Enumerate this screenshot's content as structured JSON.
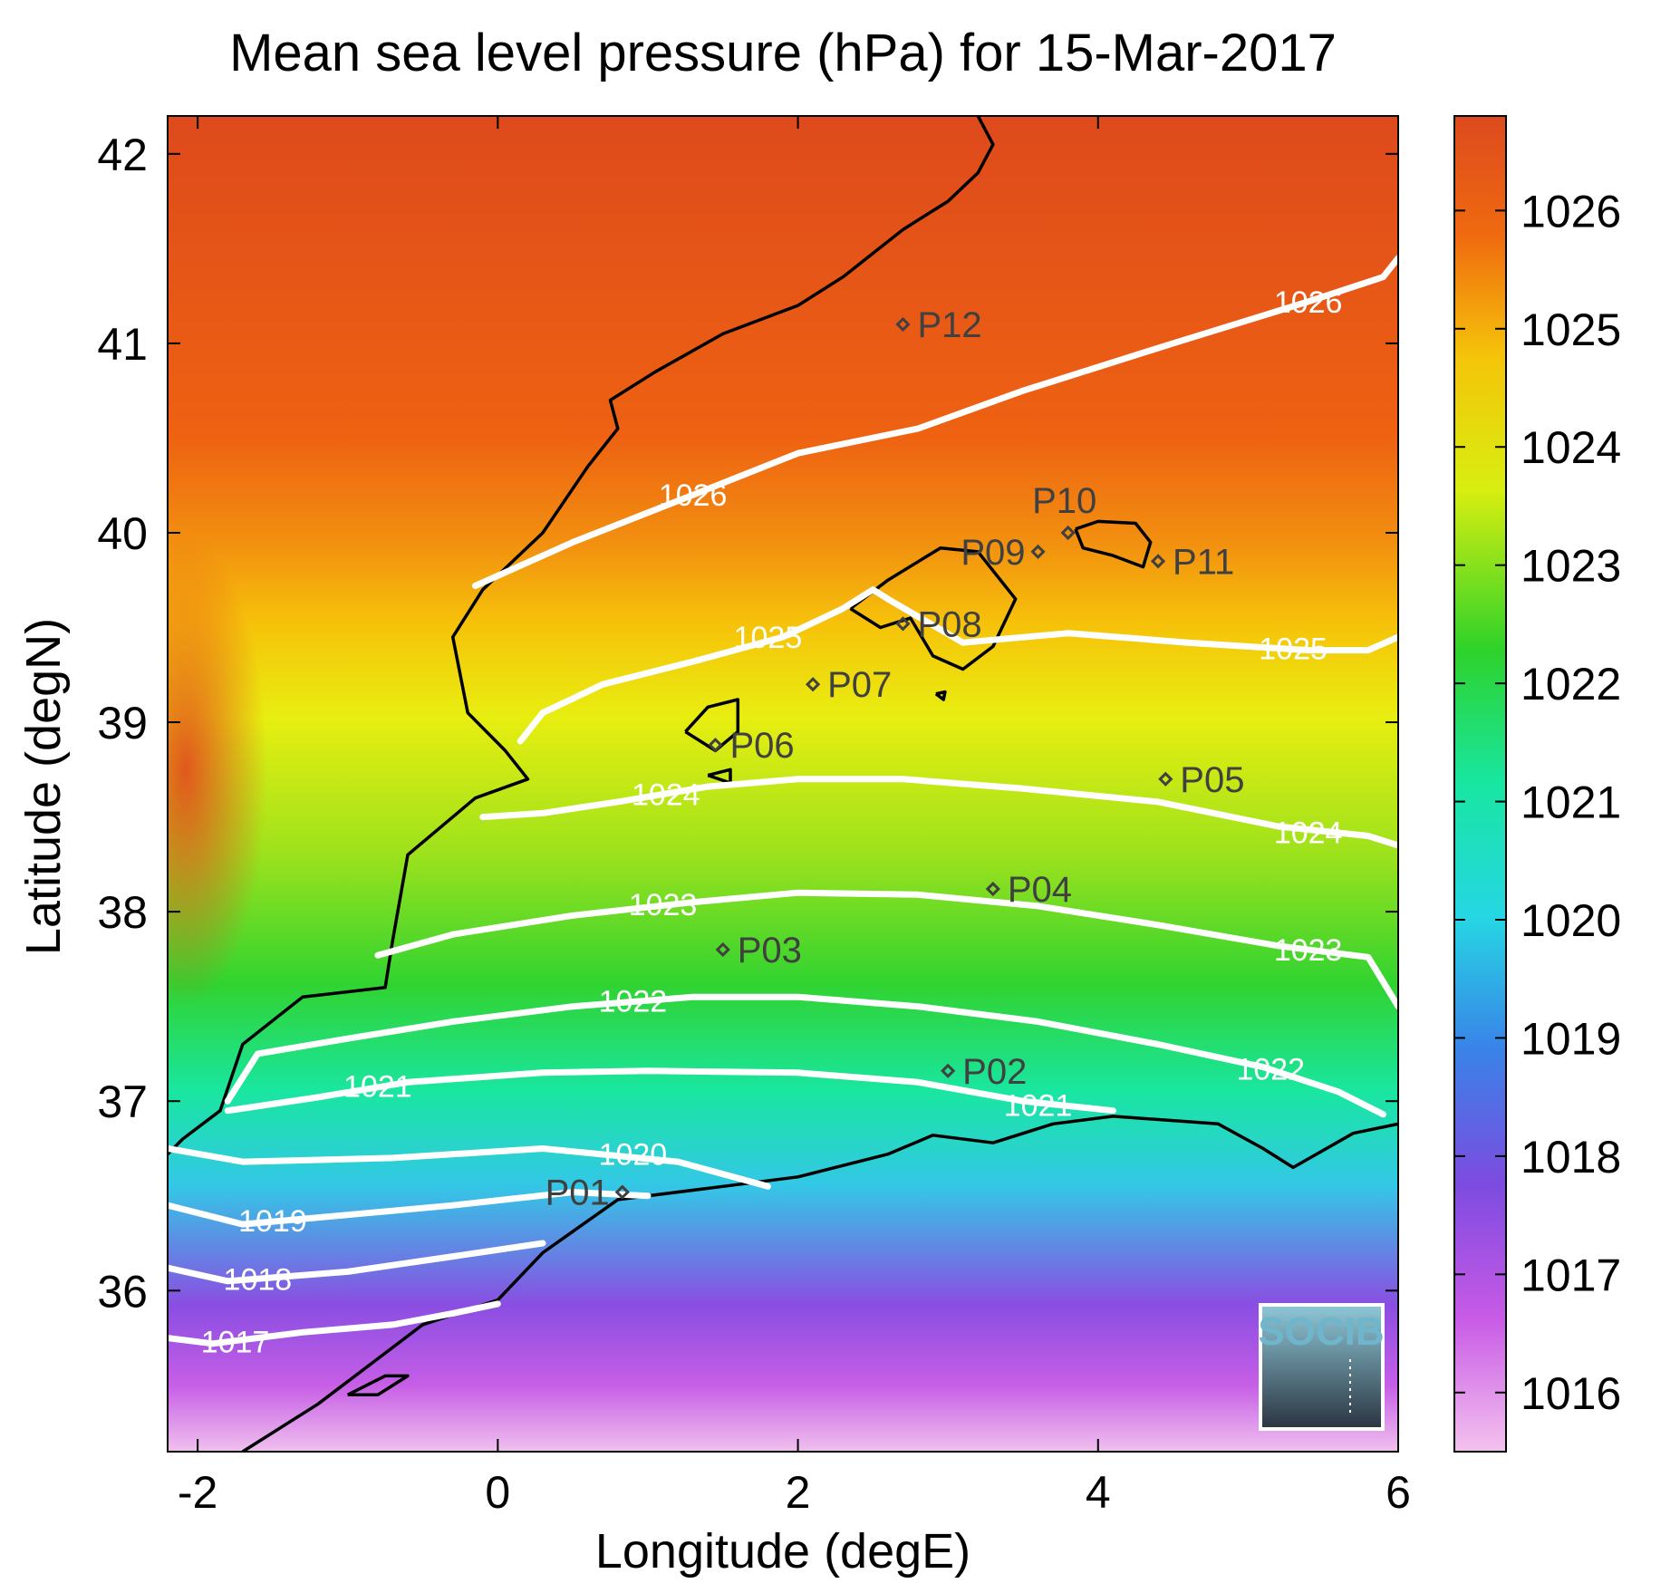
{
  "title": "Mean sea level pressure (hPa) for 15-Mar-2017",
  "xlabel": "Longitude (degE)",
  "ylabel": "Latitude (degN)",
  "x_ticks": [
    "-2",
    "0",
    "2",
    "4",
    "6"
  ],
  "y_ticks": [
    "36",
    "37",
    "38",
    "39",
    "40",
    "41",
    "42"
  ],
  "colorbar_ticks": [
    "1016",
    "1017",
    "1018",
    "1019",
    "1020",
    "1021",
    "1022",
    "1023",
    "1024",
    "1025",
    "1026"
  ],
  "logo": {
    "text": "SOCIB"
  },
  "colors": {
    "coast": "#000000",
    "contour": "#ffffff",
    "site_marker": "#404040"
  },
  "chart_data": {
    "type": "heatmap",
    "title": "Mean sea level pressure (hPa) for 15-Mar-2017",
    "xlabel": "Longitude (degE)",
    "ylabel": "Latitude (degN)",
    "xlim": [
      -2.2,
      6.0
    ],
    "ylim": [
      35.15,
      42.2
    ],
    "colorbar_range": [
      1015.5,
      1026.8
    ],
    "colorbar_colors": [
      "#f4c2ee",
      "#c85ae6",
      "#7d4be0",
      "#3a82e8",
      "#26d6e4",
      "#18e6a2",
      "#2ed22a",
      "#d8ee10",
      "#f5c40a",
      "#f06a10",
      "#dc4a1e"
    ],
    "contours": [
      {
        "level": 1026,
        "label": "1026",
        "points": [
          [
            -0.15,
            39.72
          ],
          [
            0.5,
            39.95
          ],
          [
            1.3,
            40.2
          ],
          [
            2.0,
            40.42
          ],
          [
            2.8,
            40.55
          ],
          [
            3.5,
            40.75
          ],
          [
            4.5,
            41.0
          ],
          [
            5.4,
            41.22
          ],
          [
            5.9,
            41.35
          ],
          [
            6.0,
            41.45
          ]
        ],
        "label_positions": [
          [
            1.3,
            40.2
          ],
          [
            5.4,
            41.22
          ]
        ]
      },
      {
        "level": 1025,
        "label": "1025",
        "points": [
          [
            0.15,
            38.9
          ],
          [
            0.3,
            39.05
          ],
          [
            0.7,
            39.2
          ],
          [
            1.3,
            39.32
          ],
          [
            1.9,
            39.45
          ],
          [
            2.3,
            39.6
          ],
          [
            2.5,
            39.7
          ],
          [
            2.6,
            39.65
          ],
          [
            3.1,
            39.42
          ],
          [
            3.8,
            39.47
          ],
          [
            4.6,
            39.42
          ],
          [
            5.4,
            39.38
          ],
          [
            5.8,
            39.38
          ],
          [
            6.0,
            39.45
          ]
        ],
        "label_positions": [
          [
            1.8,
            39.45
          ],
          [
            5.3,
            39.39
          ]
        ]
      },
      {
        "level": 1024,
        "label": "1024",
        "points": [
          [
            -0.1,
            38.5
          ],
          [
            0.3,
            38.52
          ],
          [
            0.8,
            38.58
          ],
          [
            1.4,
            38.66
          ],
          [
            2.0,
            38.7
          ],
          [
            2.7,
            38.7
          ],
          [
            3.5,
            38.65
          ],
          [
            4.4,
            38.58
          ],
          [
            5.2,
            38.45
          ],
          [
            5.8,
            38.4
          ],
          [
            6.0,
            38.35
          ]
        ],
        "label_positions": [
          [
            1.12,
            38.62
          ],
          [
            5.4,
            38.42
          ]
        ]
      },
      {
        "level": 1023,
        "label": "1023",
        "points": [
          [
            -0.8,
            37.77
          ],
          [
            -0.3,
            37.88
          ],
          [
            0.5,
            37.98
          ],
          [
            1.3,
            38.05
          ],
          [
            2.0,
            38.1
          ],
          [
            2.8,
            38.09
          ],
          [
            3.6,
            38.03
          ],
          [
            4.4,
            37.93
          ],
          [
            5.2,
            37.82
          ],
          [
            5.8,
            37.76
          ],
          [
            6.0,
            37.5
          ]
        ],
        "label_positions": [
          [
            1.1,
            38.04
          ],
          [
            5.4,
            37.8
          ]
        ]
      },
      {
        "level": 1022,
        "label": "1022",
        "points": [
          [
            -1.8,
            37.0
          ],
          [
            -1.6,
            37.25
          ],
          [
            -1.0,
            37.33
          ],
          [
            -0.3,
            37.42
          ],
          [
            0.5,
            37.5
          ],
          [
            1.3,
            37.55
          ],
          [
            2.0,
            37.55
          ],
          [
            2.8,
            37.5
          ],
          [
            3.6,
            37.42
          ],
          [
            4.4,
            37.3
          ],
          [
            5.1,
            37.18
          ],
          [
            5.6,
            37.05
          ],
          [
            5.9,
            36.93
          ]
        ],
        "label_positions": [
          [
            0.9,
            37.53
          ],
          [
            5.15,
            37.17
          ]
        ]
      },
      {
        "level": 1021,
        "label": "1021",
        "points": [
          [
            -1.8,
            36.95
          ],
          [
            -1.2,
            37.02
          ],
          [
            -0.6,
            37.1
          ],
          [
            0.3,
            37.15
          ],
          [
            1.0,
            37.16
          ],
          [
            2.0,
            37.15
          ],
          [
            2.8,
            37.1
          ],
          [
            3.5,
            37.0
          ],
          [
            4.1,
            36.95
          ]
        ],
        "label_positions": [
          [
            -0.8,
            37.08
          ],
          [
            3.6,
            36.98
          ]
        ]
      },
      {
        "level": 1020,
        "label": "1020",
        "points": [
          [
            -2.2,
            36.75
          ],
          [
            -1.7,
            36.68
          ],
          [
            -0.7,
            36.7
          ],
          [
            0.3,
            36.75
          ],
          [
            1.2,
            36.68
          ],
          [
            1.8,
            36.55
          ]
        ],
        "label_positions": [
          [
            0.9,
            36.72
          ]
        ]
      },
      {
        "level": 1019,
        "label": "1019",
        "points": [
          [
            -2.2,
            36.45
          ],
          [
            -1.7,
            36.35
          ],
          [
            -1.0,
            36.4
          ],
          [
            -0.3,
            36.45
          ],
          [
            0.5,
            36.52
          ],
          [
            1.0,
            36.5
          ]
        ],
        "label_positions": [
          [
            -1.5,
            36.37
          ]
        ]
      },
      {
        "level": 1018,
        "label": "1018",
        "points": [
          [
            -2.2,
            36.12
          ],
          [
            -1.8,
            36.05
          ],
          [
            -1.0,
            36.1
          ],
          [
            -0.3,
            36.18
          ],
          [
            0.3,
            36.25
          ]
        ],
        "label_positions": [
          [
            -1.6,
            36.06
          ]
        ]
      },
      {
        "level": 1017,
        "label": "1017",
        "points": [
          [
            -2.2,
            35.75
          ],
          [
            -1.9,
            35.72
          ],
          [
            -1.3,
            35.78
          ],
          [
            -0.7,
            35.82
          ],
          [
            -0.3,
            35.88
          ],
          [
            0.0,
            35.93
          ]
        ],
        "label_positions": [
          [
            -1.75,
            35.73
          ]
        ]
      }
    ],
    "sites": [
      {
        "name": "P01",
        "lon": 0.83,
        "lat": 36.52,
        "label_side": "left"
      },
      {
        "name": "P02",
        "lon": 3.0,
        "lat": 37.16,
        "label_side": "right"
      },
      {
        "name": "P03",
        "lon": 1.5,
        "lat": 37.8,
        "label_side": "right"
      },
      {
        "name": "P04",
        "lon": 3.3,
        "lat": 38.12,
        "label_side": "right"
      },
      {
        "name": "P05",
        "lon": 4.45,
        "lat": 38.7,
        "label_side": "right"
      },
      {
        "name": "P06",
        "lon": 1.45,
        "lat": 38.88,
        "label_side": "right"
      },
      {
        "name": "P07",
        "lon": 2.1,
        "lat": 39.2,
        "label_side": "right"
      },
      {
        "name": "P08",
        "lon": 2.7,
        "lat": 39.52,
        "label_side": "right"
      },
      {
        "name": "P09",
        "lon": 3.6,
        "lat": 39.9,
        "label_side": "left"
      },
      {
        "name": "P10",
        "lon": 3.8,
        "lat": 40.0,
        "label_side": "top"
      },
      {
        "name": "P11",
        "lon": 4.4,
        "lat": 39.85,
        "label_side": "right"
      },
      {
        "name": "P12",
        "lon": 2.7,
        "lat": 41.1,
        "label_side": "right"
      }
    ],
    "coastlines": [
      {
        "name": "iberian-coast",
        "points": [
          [
            3.2,
            42.2
          ],
          [
            3.3,
            42.05
          ],
          [
            3.2,
            41.9
          ],
          [
            3.0,
            41.75
          ],
          [
            2.7,
            41.6
          ],
          [
            2.3,
            41.35
          ],
          [
            2.0,
            41.2
          ],
          [
            1.5,
            41.05
          ],
          [
            1.05,
            40.85
          ],
          [
            0.75,
            40.7
          ],
          [
            0.8,
            40.55
          ],
          [
            0.6,
            40.35
          ],
          [
            0.3,
            40.0
          ],
          [
            -0.1,
            39.7
          ],
          [
            -0.3,
            39.45
          ],
          [
            -0.2,
            39.05
          ],
          [
            0.05,
            38.85
          ],
          [
            0.2,
            38.7
          ],
          [
            -0.15,
            38.6
          ],
          [
            -0.6,
            38.3
          ],
          [
            -0.7,
            37.85
          ],
          [
            -0.75,
            37.6
          ],
          [
            -1.3,
            37.55
          ],
          [
            -1.7,
            37.3
          ],
          [
            -1.85,
            36.95
          ],
          [
            -2.1,
            36.8
          ],
          [
            -2.2,
            36.72
          ]
        ]
      },
      {
        "name": "african-coast",
        "points": [
          [
            -1.7,
            35.15
          ],
          [
            -1.2,
            35.4
          ],
          [
            -0.5,
            35.82
          ],
          [
            0.0,
            35.95
          ],
          [
            0.3,
            36.2
          ],
          [
            0.8,
            36.48
          ],
          [
            1.5,
            36.55
          ],
          [
            2.0,
            36.6
          ],
          [
            2.6,
            36.72
          ],
          [
            2.9,
            36.82
          ],
          [
            3.3,
            36.78
          ],
          [
            3.7,
            36.88
          ],
          [
            4.1,
            36.92
          ],
          [
            4.8,
            36.88
          ],
          [
            5.1,
            36.75
          ],
          [
            5.3,
            36.65
          ],
          [
            5.7,
            36.83
          ],
          [
            6.0,
            36.88
          ]
        ]
      },
      {
        "name": "mallorca",
        "points": [
          [
            2.35,
            39.6
          ],
          [
            2.55,
            39.5
          ],
          [
            2.75,
            39.55
          ],
          [
            2.9,
            39.35
          ],
          [
            3.1,
            39.28
          ],
          [
            3.3,
            39.4
          ],
          [
            3.45,
            39.65
          ],
          [
            3.2,
            39.9
          ],
          [
            2.95,
            39.92
          ],
          [
            2.6,
            39.75
          ],
          [
            2.35,
            39.6
          ]
        ]
      },
      {
        "name": "menorca",
        "points": [
          [
            3.85,
            40.02
          ],
          [
            4.0,
            40.06
          ],
          [
            4.25,
            40.05
          ],
          [
            4.35,
            39.95
          ],
          [
            4.3,
            39.82
          ],
          [
            4.1,
            39.88
          ],
          [
            3.9,
            39.92
          ],
          [
            3.85,
            40.02
          ]
        ]
      },
      {
        "name": "ibiza",
        "points": [
          [
            1.25,
            38.95
          ],
          [
            1.4,
            39.08
          ],
          [
            1.6,
            39.12
          ],
          [
            1.6,
            38.95
          ],
          [
            1.45,
            38.85
          ],
          [
            1.25,
            38.95
          ]
        ]
      },
      {
        "name": "formentera",
        "points": [
          [
            1.4,
            38.72
          ],
          [
            1.55,
            38.68
          ],
          [
            1.55,
            38.75
          ],
          [
            1.4,
            38.72
          ]
        ]
      },
      {
        "name": "cabrera",
        "points": [
          [
            2.92,
            39.15
          ],
          [
            2.98,
            39.16
          ],
          [
            2.97,
            39.12
          ],
          [
            2.92,
            39.15
          ]
        ]
      },
      {
        "name": "alboran-coast",
        "points": [
          [
            -1.0,
            35.45
          ],
          [
            -0.75,
            35.55
          ],
          [
            -0.6,
            35.55
          ],
          [
            -0.8,
            35.45
          ],
          [
            -1.0,
            35.45
          ]
        ]
      }
    ]
  }
}
